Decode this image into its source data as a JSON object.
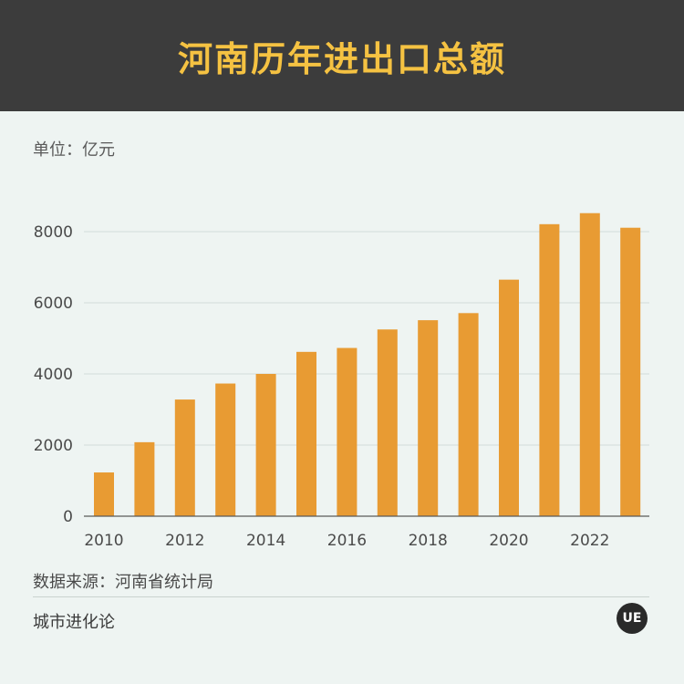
{
  "header": {
    "title": "河南历年进出口总额"
  },
  "unit_label": "单位：亿元",
  "source_label": "数据来源：河南省统计局",
  "brand_label": "城市进化论",
  "logo_text": "UE",
  "colors": {
    "bar": "#e89b33",
    "header_bg": "#3c3c3c",
    "title": "#f5c242",
    "background": "#eef4f2"
  },
  "chart_data": {
    "type": "bar",
    "categories": [
      "2010",
      "2011",
      "2012",
      "2013",
      "2014",
      "2015",
      "2016",
      "2017",
      "2018",
      "2019",
      "2020",
      "2021",
      "2022",
      "2023"
    ],
    "x_tick_labels": [
      "2010",
      "2012",
      "2014",
      "2016",
      "2018",
      "2020",
      "2022"
    ],
    "values": [
      1230,
      2080,
      3280,
      3730,
      4000,
      4620,
      4730,
      5250,
      5510,
      5710,
      6650,
      8210,
      8520,
      8110
    ],
    "y_ticks": [
      0,
      2000,
      4000,
      6000,
      8000
    ],
    "ylim": [
      0,
      9000
    ],
    "grid": true
  }
}
